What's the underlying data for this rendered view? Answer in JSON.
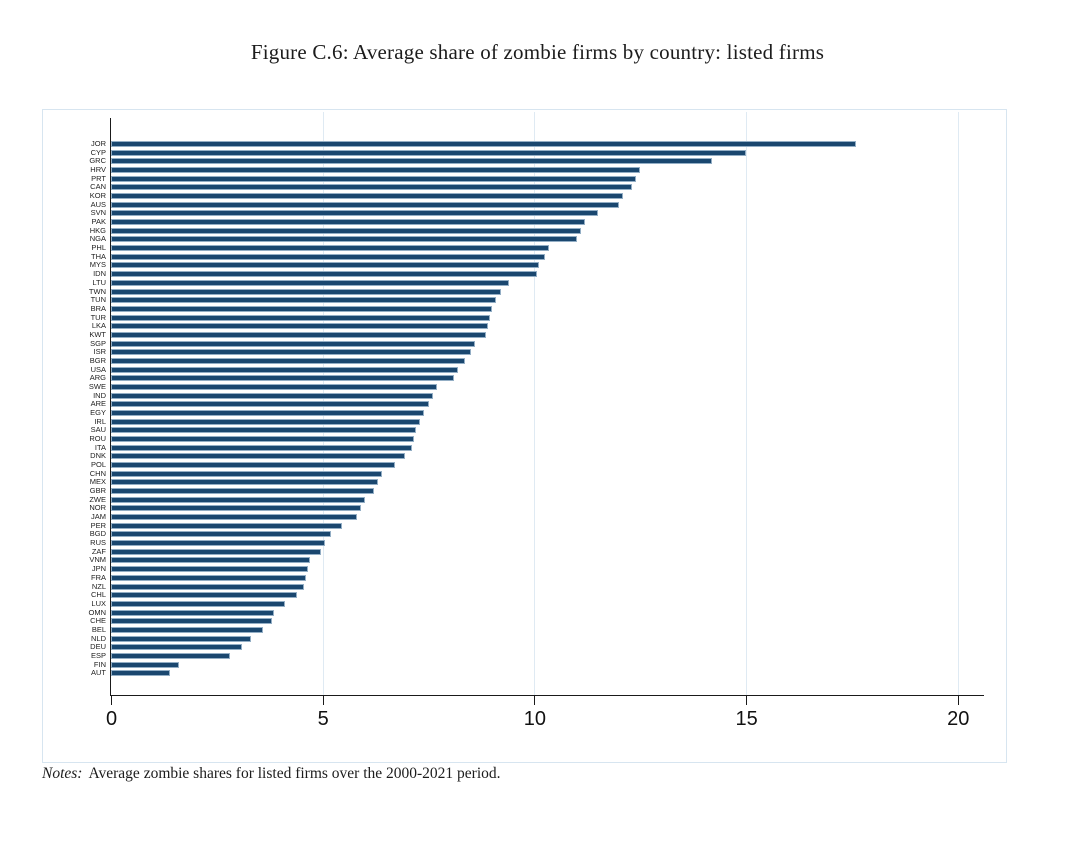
{
  "chart_data": {
    "type": "bar",
    "orientation": "horizontal",
    "title": "Figure C.6: Average share of zombie firms by country: listed firms",
    "xlabel": "",
    "ylabel": "",
    "xticks": [
      0,
      5,
      10,
      15,
      20
    ],
    "xlim": [
      0,
      21.2
    ],
    "grid": true,
    "legend": "none",
    "categories": [
      "JOR",
      "CYP",
      "GRC",
      "HRV",
      "PRT",
      "CAN",
      "KOR",
      "AUS",
      "SVN",
      "PAK",
      "HKG",
      "NGA",
      "PHL",
      "THA",
      "MYS",
      "IDN",
      "LTU",
      "TWN",
      "TUN",
      "BRA",
      "TUR",
      "LKA",
      "KWT",
      "SGP",
      "ISR",
      "BGR",
      "USA",
      "ARG",
      "SWE",
      "IND",
      "ARE",
      "EGY",
      "IRL",
      "SAU",
      "ROU",
      "ITA",
      "DNK",
      "POL",
      "CHN",
      "MEX",
      "GBR",
      "ZWE",
      "NOR",
      "JAM",
      "PER",
      "BGD",
      "RUS",
      "ZAF",
      "VNM",
      "JPN",
      "FRA",
      "NZL",
      "CHL",
      "LUX",
      "OMN",
      "CHE",
      "BEL",
      "NLD",
      "DEU",
      "ESP",
      "FIN",
      "AUT"
    ],
    "values": [
      17.6,
      15.0,
      14.2,
      12.5,
      12.4,
      12.3,
      12.1,
      12.0,
      11.5,
      11.2,
      11.1,
      11.0,
      10.35,
      10.25,
      10.1,
      10.05,
      9.4,
      9.2,
      9.1,
      9.0,
      8.95,
      8.9,
      8.85,
      8.6,
      8.5,
      8.35,
      8.2,
      8.1,
      7.7,
      7.6,
      7.5,
      7.4,
      7.3,
      7.2,
      7.15,
      7.1,
      6.95,
      6.7,
      6.4,
      6.3,
      6.2,
      6.0,
      5.9,
      5.8,
      5.45,
      5.2,
      5.05,
      4.95,
      4.7,
      4.65,
      4.6,
      4.55,
      4.4,
      4.1,
      3.85,
      3.8,
      3.6,
      3.3,
      3.1,
      2.8,
      1.6,
      1.4
    ],
    "colors": {
      "bar_fill": "#1a476f",
      "bar_edge": "#93aec5",
      "gridline": "#dfeaf3",
      "plot_border": "#d7e5f0",
      "axis_line": "#1a1a1a",
      "tick_text": "#111111",
      "category_text": "#222222"
    }
  },
  "notes": {
    "label": "Notes:",
    "text": "Average zombie shares for listed firms over the 2000-2021 period."
  }
}
